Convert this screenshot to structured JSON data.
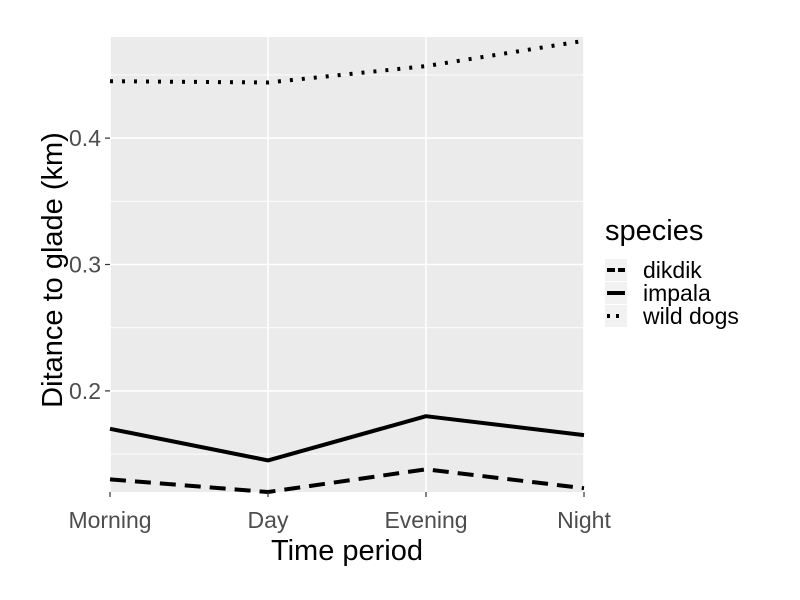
{
  "chart_data": {
    "type": "line",
    "categories": [
      "Morning",
      "Day",
      "Evening",
      "Night"
    ],
    "xlabel": "Time period",
    "ylabel": "Ditance to glade (km)",
    "ylim": [
      0.12,
      0.48
    ],
    "yticks": [
      0.2,
      0.3,
      0.4
    ],
    "ytick_labels": [
      "0.2",
      "0.3",
      "0.4"
    ],
    "grid": true,
    "legend": {
      "title": "species",
      "position": "right"
    },
    "series": [
      {
        "name": "dikdik",
        "values": [
          0.13,
          0.12,
          0.138,
          0.123
        ],
        "linetype": "dashed",
        "color": "#000000"
      },
      {
        "name": "impala",
        "values": [
          0.17,
          0.145,
          0.18,
          0.165
        ],
        "linetype": "solid",
        "color": "#000000"
      },
      {
        "name": "wild dogs",
        "values": [
          0.445,
          0.444,
          0.457,
          0.477
        ],
        "linetype": "dotted",
        "color": "#000000"
      }
    ],
    "panel_color": "#ebebeb",
    "grid_color": "#ffffff"
  }
}
